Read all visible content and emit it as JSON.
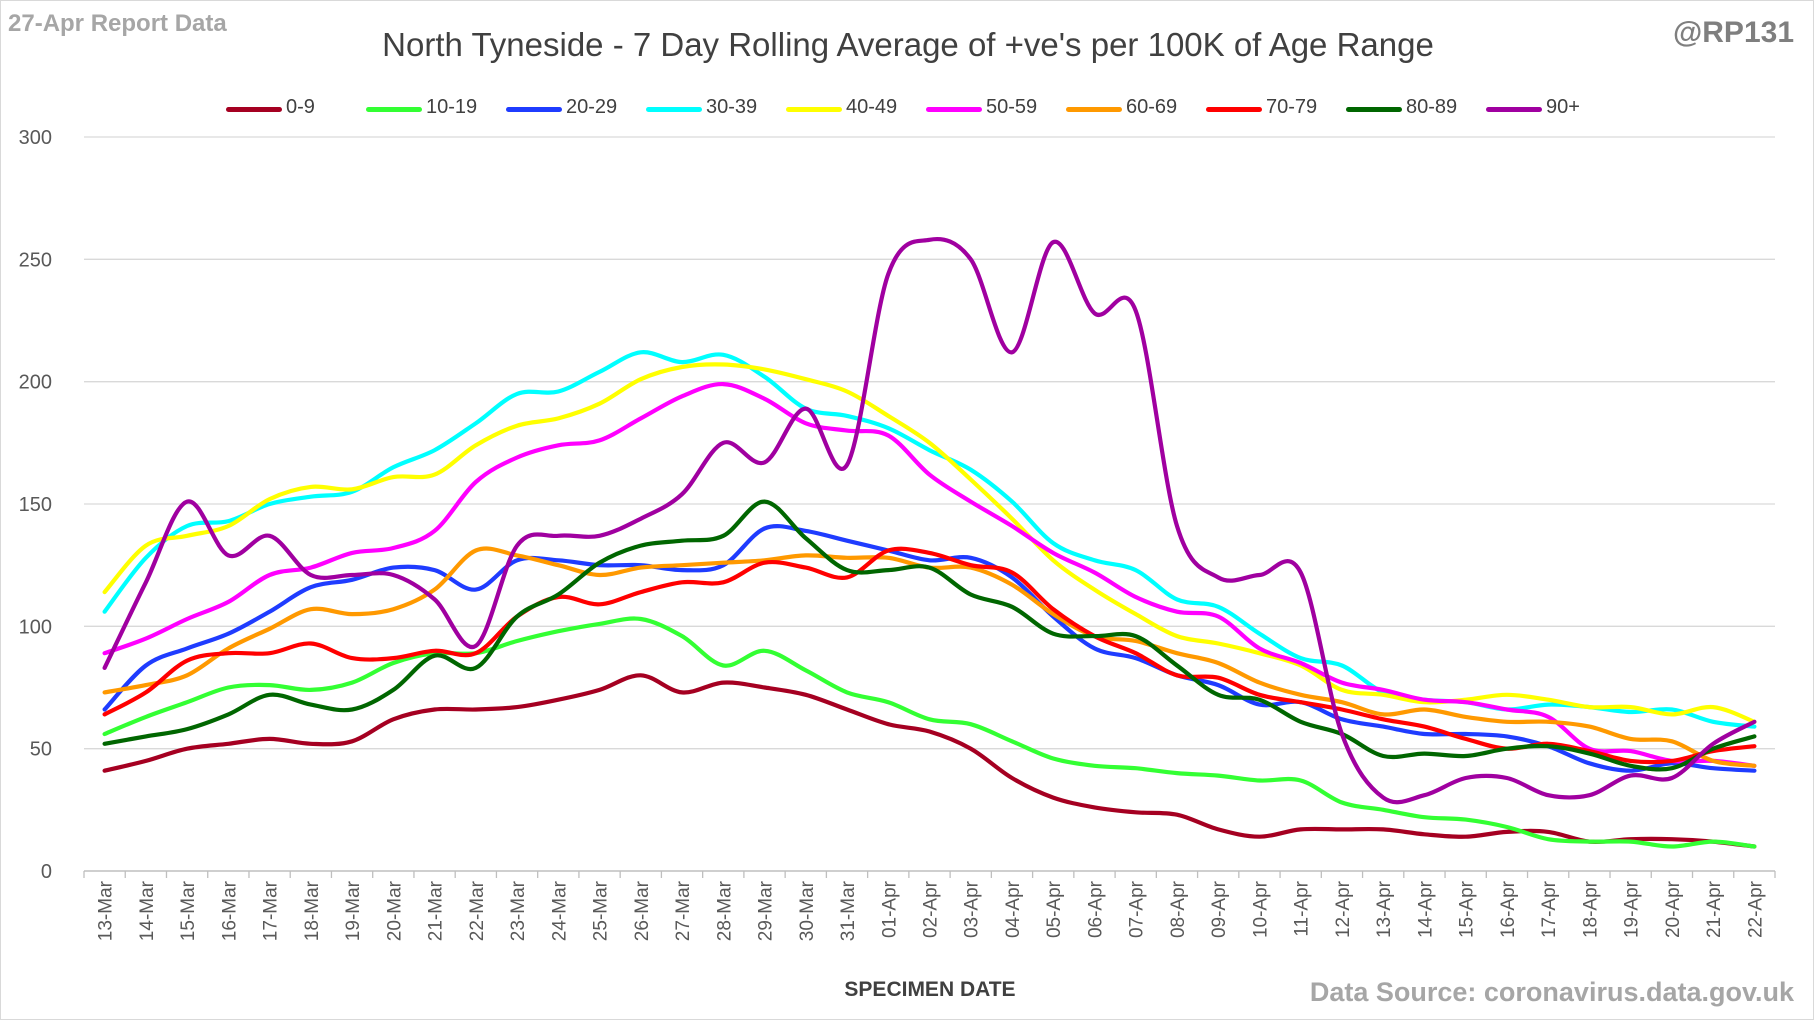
{
  "header": {
    "report_note": "27-Apr Report Data",
    "author": "@RP131",
    "source": "Data Source: coronavirus.data.gov.uk"
  },
  "chart_data": {
    "type": "line",
    "title": "North Tyneside - 7 Day Rolling Average of +ve's per 100K of Age Range",
    "xlabel": "SPECIMEN DATE",
    "ylabel": "",
    "ylim": [
      0,
      300
    ],
    "yticks": [
      0,
      50,
      100,
      150,
      200,
      250,
      300
    ],
    "grid": "horizontal",
    "legend_position": "top",
    "x": [
      "13-Mar",
      "14-Mar",
      "15-Mar",
      "16-Mar",
      "17-Mar",
      "18-Mar",
      "19-Mar",
      "20-Mar",
      "21-Mar",
      "22-Mar",
      "23-Mar",
      "24-Mar",
      "25-Mar",
      "26-Mar",
      "27-Mar",
      "28-Mar",
      "29-Mar",
      "30-Mar",
      "31-Mar",
      "01-Apr",
      "02-Apr",
      "03-Apr",
      "04-Apr",
      "05-Apr",
      "06-Apr",
      "07-Apr",
      "08-Apr",
      "09-Apr",
      "10-Apr",
      "11-Apr",
      "12-Apr",
      "13-Apr",
      "14-Apr",
      "15-Apr",
      "16-Apr",
      "17-Apr",
      "18-Apr",
      "19-Apr",
      "20-Apr",
      "21-Apr",
      "22-Apr"
    ],
    "series": [
      {
        "name": "0-9",
        "color": "#a50021",
        "values": [
          41,
          45,
          50,
          52,
          54,
          52,
          53,
          62,
          66,
          66,
          67,
          70,
          74,
          80,
          73,
          77,
          75,
          72,
          66,
          60,
          57,
          50,
          38,
          30,
          26,
          24,
          23,
          17,
          14,
          17,
          17,
          17,
          15,
          14,
          16,
          16,
          12,
          13,
          13,
          12,
          10
        ]
      },
      {
        "name": "10-19",
        "color": "#33ff33",
        "values": [
          56,
          63,
          69,
          75,
          76,
          74,
          77,
          85,
          89,
          89,
          94,
          98,
          101,
          103,
          96,
          84,
          90,
          82,
          73,
          69,
          62,
          60,
          53,
          46,
          43,
          42,
          40,
          39,
          37,
          37,
          28,
          25,
          22,
          21,
          18,
          13,
          12,
          12,
          10,
          12,
          10
        ]
      },
      {
        "name": "20-29",
        "color": "#1f3cff",
        "values": [
          66,
          84,
          91,
          97,
          106,
          116,
          119,
          124,
          123,
          115,
          127,
          127,
          125,
          125,
          123,
          125,
          140,
          139,
          135,
          131,
          127,
          128,
          120,
          104,
          91,
          87,
          80,
          76,
          68,
          69,
          62,
          59,
          56,
          56,
          55,
          51,
          44,
          41,
          44,
          42,
          41
        ]
      },
      {
        "name": "30-39",
        "color": "#00ffff",
        "values": [
          106,
          128,
          141,
          143,
          150,
          153,
          155,
          165,
          172,
          183,
          195,
          196,
          204,
          212,
          208,
          211,
          202,
          189,
          186,
          181,
          172,
          164,
          151,
          134,
          127,
          123,
          111,
          108,
          97,
          87,
          84,
          73,
          70,
          69,
          66,
          68,
          67,
          65,
          66,
          61,
          59
        ]
      },
      {
        "name": "40-49",
        "color": "#ffff00",
        "values": [
          114,
          133,
          137,
          141,
          152,
          157,
          156,
          161,
          162,
          174,
          182,
          185,
          191,
          201,
          206,
          207,
          205,
          201,
          196,
          186,
          175,
          160,
          144,
          127,
          115,
          105,
          96,
          93,
          89,
          84,
          74,
          72,
          69,
          70,
          72,
          70,
          67,
          67,
          64,
          67,
          61
        ]
      },
      {
        "name": "50-59",
        "color": "#ff00ff",
        "values": [
          89,
          95,
          103,
          110,
          121,
          124,
          130,
          132,
          139,
          159,
          169,
          174,
          176,
          185,
          194,
          199,
          193,
          183,
          180,
          178,
          162,
          151,
          141,
          130,
          122,
          112,
          106,
          104,
          91,
          85,
          77,
          74,
          70,
          69,
          66,
          63,
          50,
          49,
          45,
          45,
          43
        ]
      },
      {
        "name": "60-69",
        "color": "#ff9900",
        "values": [
          73,
          76,
          80,
          91,
          99,
          107,
          105,
          107,
          115,
          131,
          129,
          125,
          121,
          124,
          125,
          126,
          127,
          129,
          128,
          128,
          124,
          124,
          117,
          105,
          96,
          94,
          89,
          85,
          77,
          72,
          69,
          64,
          66,
          63,
          61,
          61,
          59,
          54,
          53,
          45,
          43
        ]
      },
      {
        "name": "70-79",
        "color": "#ff0000",
        "values": [
          64,
          73,
          86,
          89,
          89,
          93,
          87,
          87,
          90,
          89,
          104,
          112,
          109,
          114,
          118,
          118,
          126,
          124,
          120,
          131,
          130,
          125,
          122,
          107,
          96,
          89,
          80,
          79,
          72,
          69,
          66,
          62,
          59,
          54,
          50,
          52,
          49,
          45,
          45,
          49,
          51
        ]
      },
      {
        "name": "80-89",
        "color": "#006600",
        "values": [
          52,
          55,
          58,
          64,
          72,
          68,
          66,
          74,
          88,
          83,
          104,
          113,
          126,
          133,
          135,
          137,
          151,
          136,
          123,
          123,
          124,
          113,
          108,
          97,
          96,
          96,
          84,
          72,
          70,
          61,
          56,
          47,
          48,
          47,
          50,
          51,
          48,
          43,
          42,
          50,
          55
        ]
      },
      {
        "name": "90+",
        "color": "#a000a0",
        "values": [
          83,
          118,
          151,
          129,
          137,
          121,
          121,
          121,
          111,
          92,
          133,
          137,
          137,
          144,
          154,
          175,
          167,
          189,
          166,
          244,
          258,
          250,
          212,
          257,
          228,
          229,
          141,
          120,
          121,
          122,
          56,
          30,
          31,
          38,
          38,
          31,
          31,
          39,
          38,
          52,
          61
        ]
      }
    ]
  }
}
